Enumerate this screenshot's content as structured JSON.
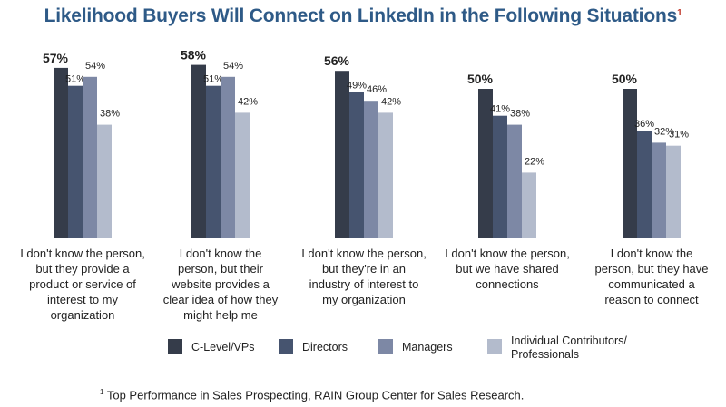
{
  "chart_data": {
    "type": "bar",
    "title": "Likelihood Buyers Will Connect on LinkedIn in the Following Situations",
    "title_footnote_marker": "1",
    "categories": [
      [
        "I don't know the person,",
        "but they provide a",
        "product or service of",
        "interest to my",
        "organization"
      ],
      [
        "I don't know the",
        "person, but their",
        "website provides a",
        "clear idea of how they",
        "might help me"
      ],
      [
        "I don't know the person,",
        "but they're in an",
        "industry of interest to",
        "my organization"
      ],
      [
        "I don't know the person,",
        "but we have shared",
        "connections"
      ],
      [
        "I don't know the",
        "person, but they have",
        "communicated a",
        "reason to connect"
      ]
    ],
    "series": [
      {
        "name": "C-Level/VPs",
        "color": "#353c4a",
        "values": [
          57,
          58,
          56,
          50,
          50
        ]
      },
      {
        "name": "Directors",
        "color": "#46546f",
        "values": [
          51,
          51,
          49,
          41,
          36
        ]
      },
      {
        "name": "Managers",
        "color": "#7d88a5",
        "values": [
          54,
          54,
          46,
          38,
          32
        ]
      },
      {
        "name": "Individual Contributors/ Professionals",
        "color": "#b3bbcc",
        "values": [
          38,
          42,
          42,
          22,
          31
        ]
      }
    ],
    "value_format": "percent",
    "ylim": [
      0,
      60
    ],
    "axes_visible": false,
    "grid": false,
    "legend_position": "bottom"
  },
  "footnote": {
    "marker": "1",
    "text": "Top Performance in Sales Prospecting, RAIN Group Center for Sales Research."
  }
}
